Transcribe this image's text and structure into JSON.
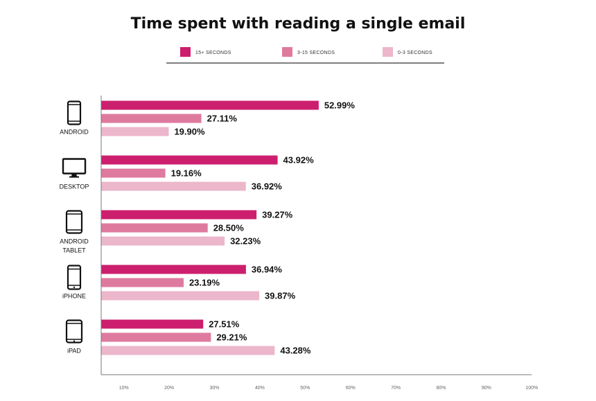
{
  "chart_data": {
    "type": "bar",
    "orientation": "horizontal",
    "title": "Time spent with reading a single email",
    "categories": [
      "ANDROID",
      "DESKTOP",
      "ANDROID TABLET",
      "iPHONE",
      "iPAD"
    ],
    "category_icons": [
      "phone-icon",
      "monitor-icon",
      "tablet-icon",
      "iphone-icon",
      "ipad-icon"
    ],
    "series": [
      {
        "name": "15+ SECONDS",
        "color": "#cc1f6e",
        "values": [
          52.99,
          43.92,
          39.27,
          36.94,
          27.51
        ],
        "labels": [
          "52.99%",
          "43.92%",
          "39.27%",
          "36.94%",
          "27.51%"
        ]
      },
      {
        "name": "3-15 SECONDS",
        "color": "#df7a9f",
        "values": [
          27.11,
          19.16,
          28.5,
          23.19,
          29.21
        ],
        "labels": [
          "27.11%",
          "19.16%",
          "28.50%",
          "23.19%",
          "29.21%"
        ]
      },
      {
        "name": "0-3 SECONDS",
        "color": "#ecb6cb",
        "values": [
          19.9,
          36.92,
          32.23,
          39.87,
          43.28
        ],
        "labels": [
          "19.90%",
          "36.92%",
          "32.23%",
          "39.87%",
          "43.28%"
        ]
      }
    ],
    "x_ticks": [
      "10%",
      "20%",
      "30%",
      "40%",
      "50%",
      "60%",
      "70%",
      "80%",
      "90%",
      "100%"
    ],
    "xlim": [
      5,
      100
    ],
    "legend_position": "top",
    "grid": false
  }
}
